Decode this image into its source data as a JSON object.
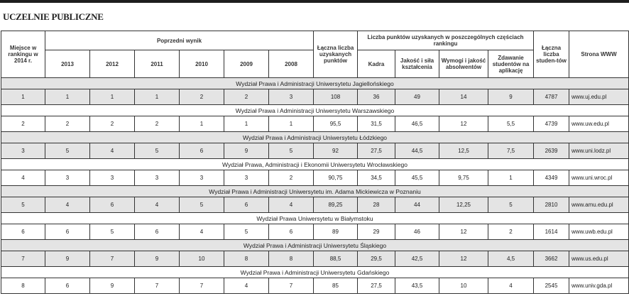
{
  "title": "UCZELNIE PUBLICZNE",
  "colors": {
    "shade": "#e4e4e4",
    "border": "#333333",
    "topbar": "#1d1d1d"
  },
  "headers": {
    "rank": "Miejsce w rankingu w 2014 r.",
    "previous": "Poprzedni wynik",
    "years": [
      "2013",
      "2012",
      "2011",
      "2010",
      "2009",
      "2008"
    ],
    "total_points": "Łączna liczba uzyskanych punktów",
    "parts": "Liczba punktów uzyskanych w poszczególnych częściach rankingu",
    "part_cols": [
      "Kadra",
      "Jakość i siła kształcenia",
      "Wymogi i jakość absolwentów",
      "Zdawanie studentów na aplikację"
    ],
    "students": "Łączna liczba studen-tów",
    "www": "Strona WWW"
  },
  "rows": [
    {
      "name": "Wydział Prawa i Administracji Uniwersytetu Jagiellońskiego",
      "values": [
        "1",
        "1",
        "1",
        "1",
        "2",
        "2",
        "3",
        "108",
        "36",
        "49",
        "14",
        "9",
        "4787"
      ],
      "www": "www.uj.edu.pl"
    },
    {
      "name": "Wydział Prawa i Administracji Uniwersytetu Warszawskiego",
      "values": [
        "2",
        "2",
        "2",
        "2",
        "1",
        "1",
        "1",
        "95,5",
        "31,5",
        "46,5",
        "12",
        "5,5",
        "4739"
      ],
      "www": "www.uw.edu.pl"
    },
    {
      "name": "Wydział Prawa i Administracji Uniwersytetu Łódzkiego",
      "values": [
        "3",
        "5",
        "4",
        "5",
        "6",
        "9",
        "5",
        "92",
        "27,5",
        "44,5",
        "12,5",
        "7,5",
        "2639"
      ],
      "www": "www.uni.lodz.pl"
    },
    {
      "name": "Wydział Prawa, Administracji i Ekonomii Uniwersytetu Wrocławskiego",
      "values": [
        "4",
        "3",
        "3",
        "3",
        "3",
        "3",
        "2",
        "90,75",
        "34,5",
        "45,5",
        "9,75",
        "1",
        "4349"
      ],
      "www": "www.uni.wroc.pl"
    },
    {
      "name": "Wydział Prawa i Administracji Uniwersytetu im. Adama Mickiewicza w Poznaniu",
      "values": [
        "5",
        "4",
        "6",
        "4",
        "5",
        "6",
        "4",
        "89,25",
        "28",
        "44",
        "12,25",
        "5",
        "2810"
      ],
      "www": "www.amu.edu.pl"
    },
    {
      "name": "Wydział Prawa Uniwersytetu w Białymstoku",
      "values": [
        "6",
        "6",
        "5",
        "6",
        "4",
        "5",
        "6",
        "89",
        "29",
        "46",
        "12",
        "2",
        "1614"
      ],
      "www": "www.uwb.edu.pl"
    },
    {
      "name": "Wydział Prawa i Administracji Uniwersytetu Śląskiego",
      "values": [
        "7",
        "9",
        "7",
        "9",
        "10",
        "8",
        "8",
        "88,5",
        "29,5",
        "42,5",
        "12",
        "4,5",
        "3662"
      ],
      "www": "www.us.edu.pl"
    },
    {
      "name": "Wydział Prawa i Administracji Uniwersytetu Gdańskiego",
      "values": [
        "8",
        "6",
        "9",
        "7",
        "7",
        "4",
        "7",
        "85",
        "27,5",
        "43,5",
        "10",
        "4",
        "2545"
      ],
      "www": "www.univ.gda.pl"
    }
  ]
}
